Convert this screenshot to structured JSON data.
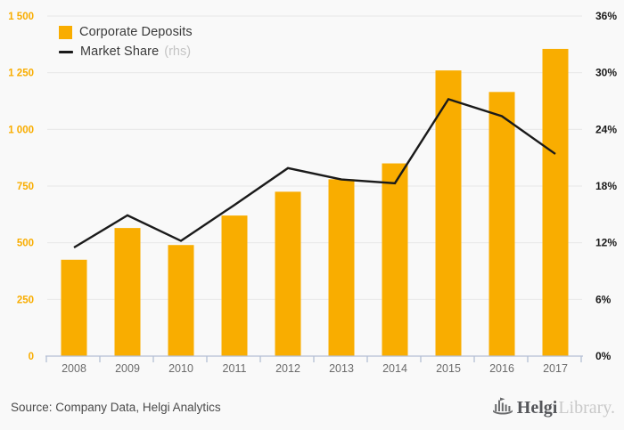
{
  "colors": {
    "background": "#F9F9F9",
    "bar": "#F9AD00",
    "line": "#1A1A1A",
    "gridline": "#E8E8E8",
    "axis": "#B4BFD4",
    "year_label": "#6B6B6B",
    "legend_text": "#3A3A3A",
    "legend_suffix": "#C4C4C4"
  },
  "legend": {
    "items": [
      {
        "label": "Corporate Deposits",
        "swatch": "square"
      },
      {
        "label": "Market Share",
        "suffix": "(rhs)",
        "swatch": "line"
      }
    ]
  },
  "chart_data": {
    "type": "bar",
    "title": "",
    "categories": [
      "2008",
      "2009",
      "2010",
      "2011",
      "2012",
      "2013",
      "2014",
      "2015",
      "2016",
      "2017"
    ],
    "series": [
      {
        "name": "Corporate Deposits",
        "type": "bar",
        "axis": "left",
        "color": "#F9AD00",
        "values": [
          425,
          565,
          490,
          620,
          725,
          780,
          850,
          1260,
          1165,
          1355
        ]
      },
      {
        "name": "Market Share (rhs)",
        "type": "line",
        "axis": "right",
        "color": "#1A1A1A",
        "values": [
          11.5,
          14.9,
          12.2,
          16.0,
          19.9,
          18.7,
          18.3,
          27.2,
          25.4,
          21.4
        ]
      }
    ],
    "left_axis": {
      "min": 0,
      "max": 1500,
      "step": 250,
      "tick_labels": [
        "1 500",
        "1 250",
        "1 000",
        "750",
        "500",
        "250",
        "0"
      ],
      "color": "#F9AD00"
    },
    "right_axis": {
      "min": 0,
      "max": 36,
      "step": 6,
      "tick_labels": [
        "36%",
        "30%",
        "24%",
        "18%",
        "12%",
        "6%",
        "0%"
      ],
      "color": "#1A1A1A"
    },
    "grid": true,
    "legend_position": "top-left"
  },
  "footer": {
    "source": "Source: Company Data, Helgi Analytics",
    "logo": {
      "bold": "Helgi",
      "light": "Library."
    }
  }
}
